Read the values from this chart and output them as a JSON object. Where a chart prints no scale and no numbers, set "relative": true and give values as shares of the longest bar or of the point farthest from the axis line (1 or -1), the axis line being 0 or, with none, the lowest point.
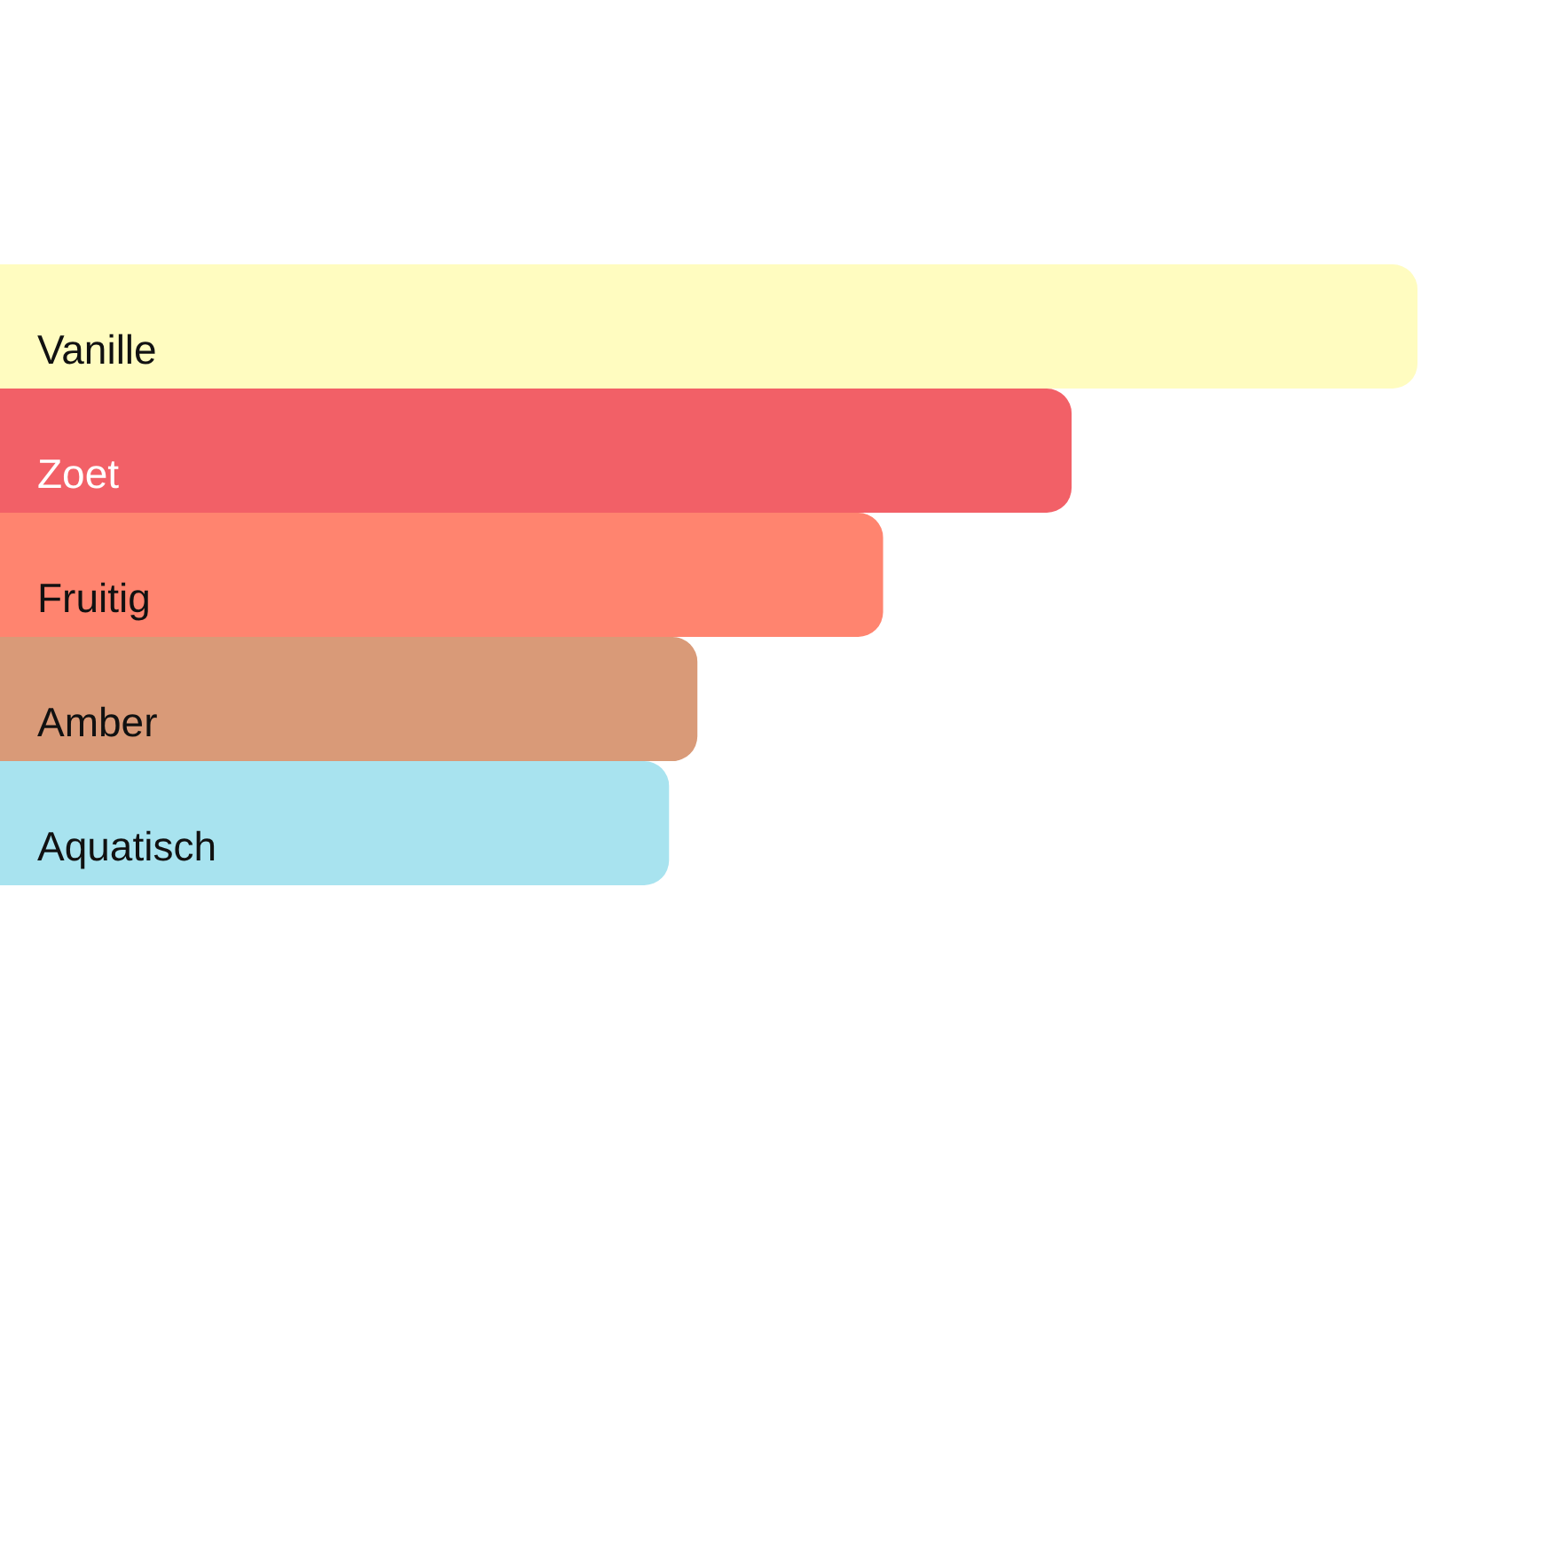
{
  "chart_data": {
    "type": "bar",
    "orientation": "horizontal",
    "relative": true,
    "categories": [
      "Vanille",
      "Zoet",
      "Fruitig",
      "Amber",
      "Aquatisch"
    ],
    "values": [
      1,
      0.756,
      0.623,
      0.492,
      0.472
    ],
    "colors": [
      "#fffcc0",
      "#f26067",
      "#ff846f",
      "#d99a78",
      "#a8e3ef"
    ]
  }
}
